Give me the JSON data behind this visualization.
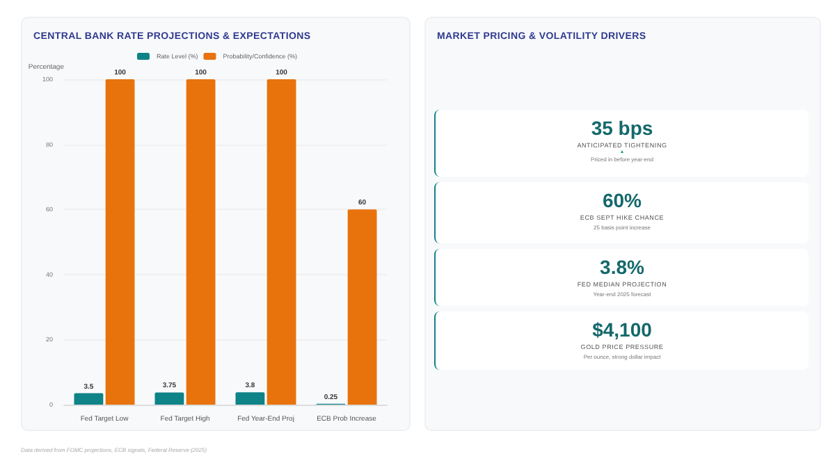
{
  "chart_data": [
    {
      "type": "bar",
      "title": "CENTRAL BANK RATE PROJECTIONS & EXPECTATIONS",
      "ylabel": "Percentage",
      "categories": [
        "Fed Target Low",
        "Fed Target High",
        "Fed Year-End Proj",
        "ECB Prob Increase"
      ],
      "series": [
        {
          "name": "Rate Level (%)",
          "color": "#0e8388",
          "values": [
            3.5,
            3.75,
            3.8,
            0.25
          ]
        },
        {
          "name": "Probability/Confidence (%)",
          "color": "#e8730c",
          "values": [
            100,
            100,
            100,
            60
          ]
        }
      ],
      "ylim": [
        0,
        100
      ],
      "yticks": [
        0,
        20,
        40,
        60,
        80,
        100
      ],
      "grid": "y",
      "legend": "top",
      "data_labels": true,
      "annotations": [
        "Data derived from FOMC projections, ECB signals, Federal Reserve (2025)"
      ]
    },
    {
      "type": "other",
      "title": "MARKET PRICING & VOLATILITY DRIVERS",
      "annotations": [
        "35 bps",
        "ANTICIPATED TIGHTENING",
        "Priced in before year-end",
        "60%",
        "ECB SEPT HIKE CHANCE",
        "25 basis point increase",
        "3.8%",
        "FED MEDIAN PROJECTION",
        "Year-end 2025 forecast",
        "$4,100",
        "GOLD PRICE PRESSURE",
        "Per ounce, strong dollar impact"
      ]
    }
  ]
}
